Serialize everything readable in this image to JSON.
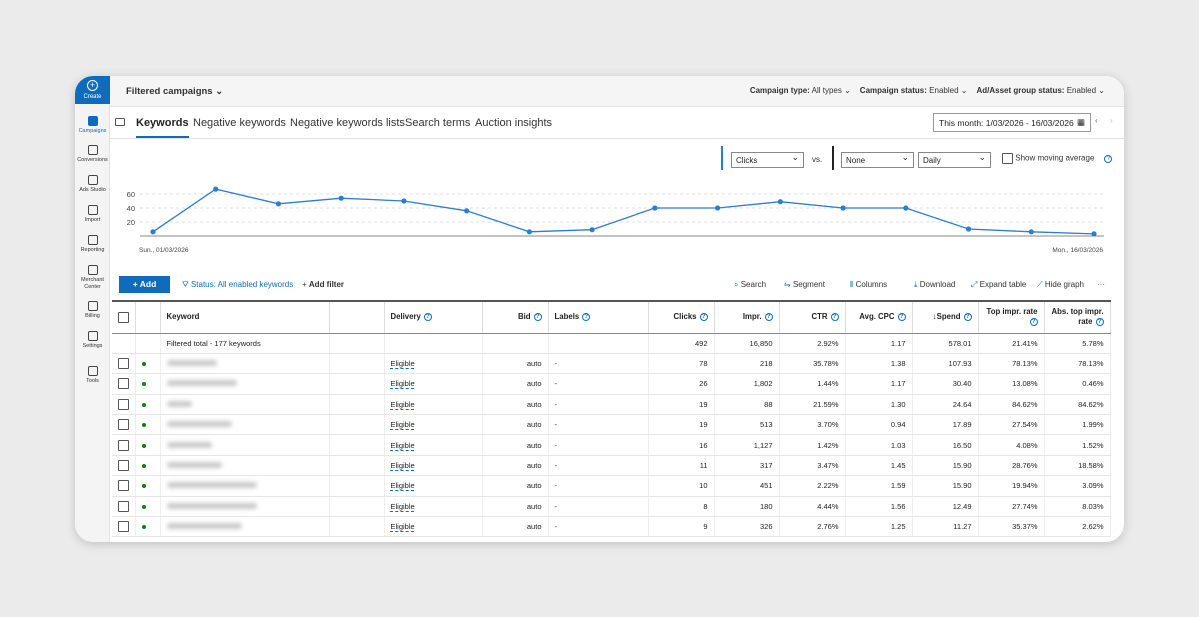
{
  "sidebar": {
    "create": "Create",
    "items": [
      "Campaigns",
      "Conversions",
      "Ads Studio",
      "Import",
      "Reporting",
      "Merchant Center",
      "Billing",
      "Settings",
      "Tools"
    ]
  },
  "header": {
    "title": "Filtered campaigns",
    "filters": [
      {
        "label": "Campaign type:",
        "value": "All types"
      },
      {
        "label": "Campaign status:",
        "value": "Enabled"
      },
      {
        "label": "Ad/Asset group status:",
        "value": "Enabled"
      }
    ]
  },
  "tabs": [
    "Keywords",
    "Negative keywords",
    "Negative keywords lists",
    "Search terms",
    "Auction insights"
  ],
  "date_range": "This month: 1/03/2026 - 16/03/2026",
  "chart_controls": {
    "metric1": "Clicks",
    "vs": "vs.",
    "metric2": "None",
    "granularity": "Daily",
    "moving_average": "Show moving average"
  },
  "chart_data": {
    "type": "line",
    "color": "#2b7cd3",
    "grid": true,
    "categories": [
      "Sun., 01/03/2026",
      null,
      null,
      null,
      null,
      null,
      null,
      null,
      null,
      null,
      null,
      null,
      null,
      null,
      null,
      "Mon., 16/03/2026"
    ],
    "values": [
      6,
      67,
      46,
      54,
      50,
      36,
      6,
      9,
      40,
      40,
      49,
      40,
      40,
      10,
      6,
      3
    ],
    "ylim": [
      0,
      80
    ],
    "yticks": [
      20,
      40,
      60
    ]
  },
  "toolbar": {
    "add": "Add",
    "status": "Status: All enabled keywords",
    "add_filter": "Add filter",
    "actions": [
      "Search",
      "Segment",
      "Columns",
      "Download",
      "Expand table",
      "Hide graph"
    ]
  },
  "table": {
    "headers": [
      "Keyword",
      "Delivery",
      "Bid",
      "Labels",
      "Clicks",
      "Impr.",
      "CTR",
      "Avg. CPC",
      "Spend",
      "Top impr. rate",
      "Abs. top impr. rate"
    ],
    "total": {
      "label": "Filtered total - 177 keywords",
      "cells": [
        "492",
        "16,850",
        "2.92%",
        "1.17",
        "578.01",
        "21.41%",
        "5.78%"
      ]
    },
    "rows": [
      [
        "Eligible",
        "auto",
        "-",
        "78",
        "218",
        "35.78%",
        "1.38",
        "107.93",
        "78.13%",
        "78.13%"
      ],
      [
        "Eligible",
        "auto",
        "-",
        "26",
        "1,802",
        "1.44%",
        "1.17",
        "30.40",
        "13.08%",
        "0.46%"
      ],
      [
        "Eligible",
        "auto",
        "-",
        "19",
        "88",
        "21.59%",
        "1.30",
        "24.64",
        "84.62%",
        "84.62%"
      ],
      [
        "Eligible",
        "auto",
        "-",
        "19",
        "513",
        "3.70%",
        "0.94",
        "17.89",
        "27.54%",
        "1.99%"
      ],
      [
        "Eligible",
        "auto",
        "-",
        "16",
        "1,127",
        "1.42%",
        "1.03",
        "16.50",
        "4.08%",
        "1.52%"
      ],
      [
        "Eligible",
        "auto",
        "-",
        "11",
        "317",
        "3.47%",
        "1.45",
        "15.90",
        "28.76%",
        "18.58%"
      ],
      [
        "Eligible",
        "auto",
        "-",
        "10",
        "451",
        "2.22%",
        "1.59",
        "15.90",
        "19.94%",
        "3.09%"
      ],
      [
        "Eligible",
        "auto",
        "-",
        "8",
        "180",
        "4.44%",
        "1.56",
        "12.49",
        "27.74%",
        "8.03%"
      ],
      [
        "Eligible",
        "auto",
        "-",
        "9",
        "326",
        "2.76%",
        "1.25",
        "11.27",
        "35.37%",
        "2.62%"
      ]
    ]
  }
}
